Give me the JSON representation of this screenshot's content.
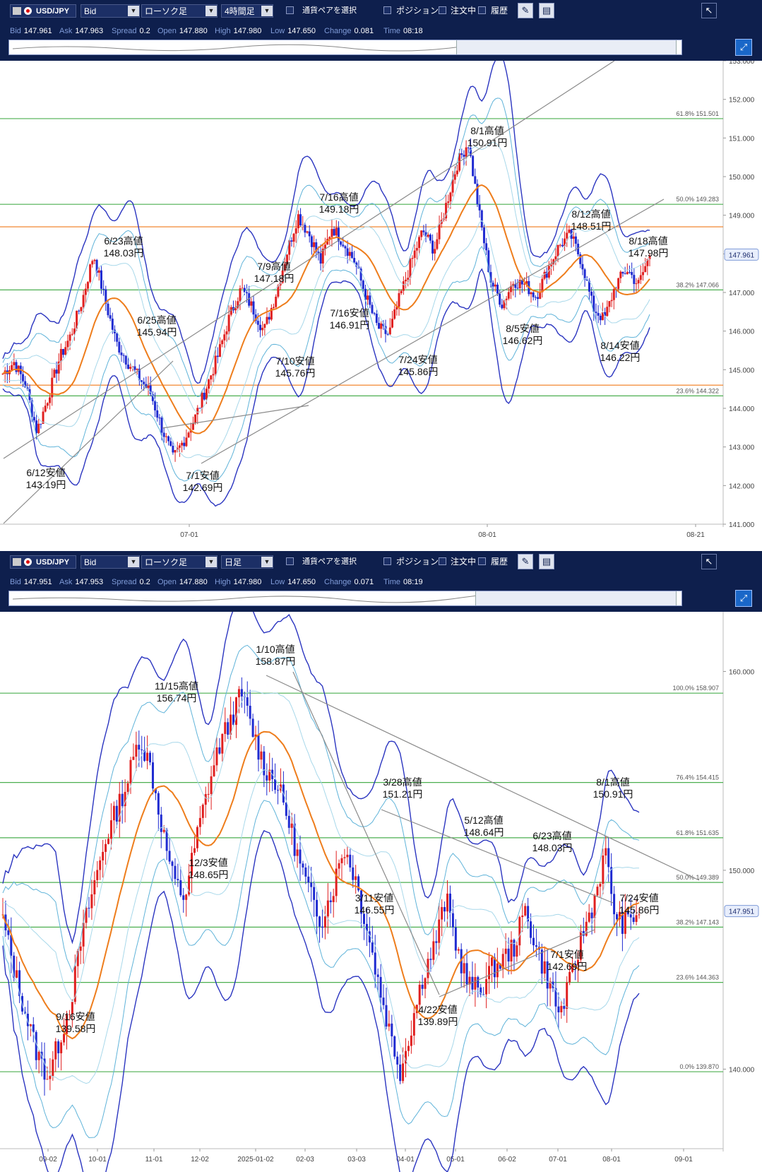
{
  "panels": [
    {
      "symbol": "USD/JPY",
      "price_type": "Bid",
      "chart_type": "ローソク足",
      "timeframe": "4時間足",
      "pair_select_label": "通貨ペアを選択",
      "position_label": "ポジション",
      "orders_label": "注文中",
      "history_label": "履歴",
      "info": {
        "bid_label": "Bid",
        "bid": "147.961",
        "ask_label": "Ask",
        "ask": "147.963",
        "spread_label": "Spread",
        "spread": "0.2",
        "open_label": "Open",
        "open": "147.880",
        "high_label": "High",
        "high": "147.980",
        "low_label": "Low",
        "low": "147.650",
        "change_label": "Change",
        "change": "0.081",
        "time_label": "Time",
        "time": "08:18"
      },
      "last_price_tag": "147.961",
      "y_axis": [
        "153.000",
        "152.000",
        "151.000",
        "150.000",
        "149.000",
        "148.000",
        "147.000",
        "146.000",
        "145.000",
        "144.000",
        "143.000",
        "142.000",
        "141.000"
      ],
      "x_axis": [
        "07-01",
        "08-01",
        "08-21"
      ],
      "fib_labels": [
        "61.8%  151.501",
        "50.0%  149.283",
        "38.2%  147.066",
        "23.6%  144.322"
      ],
      "annotations": [
        {
          "line1": "8/1高値",
          "line2": "150.91円"
        },
        {
          "line1": "7/16高値",
          "line2": "149.18円"
        },
        {
          "line1": "8/12高値",
          "line2": "148.51円"
        },
        {
          "line1": "8/18高値",
          "line2": "147.98円"
        },
        {
          "line1": "6/23高値",
          "line2": "148.03円"
        },
        {
          "line1": "7/9高値",
          "line2": "147.18円"
        },
        {
          "line1": "6/25高値",
          "line2": "145.94円"
        },
        {
          "line1": "7/16安値",
          "line2": "146.91円"
        },
        {
          "line1": "8/5安値",
          "line2": "146.62円"
        },
        {
          "line1": "7/10安値",
          "line2": "145.76円"
        },
        {
          "line1": "7/24安値",
          "line2": "145.86円"
        },
        {
          "line1": "8/14安値",
          "line2": "146.22円"
        },
        {
          "line1": "6/12安値",
          "line2": "143.19円"
        },
        {
          "line1": "7/1安値",
          "line2": "142.69円"
        }
      ]
    },
    {
      "symbol": "USD/JPY",
      "price_type": "Bid",
      "chart_type": "ローソク足",
      "timeframe": "日足",
      "pair_select_label": "通貨ペアを選択",
      "position_label": "ポジション",
      "orders_label": "注文中",
      "history_label": "履歴",
      "info": {
        "bid_label": "Bid",
        "bid": "147.951",
        "ask_label": "Ask",
        "ask": "147.953",
        "spread_label": "Spread",
        "spread": "0.2",
        "open_label": "Open",
        "open": "147.880",
        "high_label": "High",
        "high": "147.980",
        "low_label": "Low",
        "low": "147.650",
        "change_label": "Change",
        "change": "0.071",
        "time_label": "Time",
        "time": "08:19"
      },
      "last_price_tag": "147.951",
      "y_axis": [
        "160.000",
        "150.000",
        "140.000"
      ],
      "x_axis": [
        "09-02",
        "10-01",
        "11-01",
        "12-02",
        "2025-01-02",
        "02-03",
        "03-03",
        "04-01",
        "05-01",
        "06-02",
        "07-01",
        "08-01",
        "09-01"
      ],
      "fib_labels": [
        "100.0%  158.907",
        "76.4%  154.415",
        "61.8%  151.635",
        "50.0%  149.389",
        "38.2%  147.143",
        "23.6%  144.363",
        "0.0%  139.870"
      ],
      "annotations": [
        {
          "line1": "1/10高値",
          "line2": "158.87円"
        },
        {
          "line1": "11/15高値",
          "line2": "156.74円"
        },
        {
          "line1": "3/28高値",
          "line2": "151.21円"
        },
        {
          "line1": "8/1高値",
          "line2": "150.91円"
        },
        {
          "line1": "5/12高値",
          "line2": "148.64円"
        },
        {
          "line1": "6/23高値",
          "line2": "148.03円"
        },
        {
          "line1": "12/3安値",
          "line2": "148.65円"
        },
        {
          "line1": "3/11安値",
          "line2": "146.55円"
        },
        {
          "line1": "7/24安値",
          "line2": "145.86円"
        },
        {
          "line1": "7/1安値",
          "line2": "142.69円"
        },
        {
          "line1": "4/22安値",
          "line2": "139.89円"
        },
        {
          "line1": "9/16安値",
          "line2": "139.58円"
        }
      ]
    }
  ],
  "chart_data": [
    {
      "type": "candlestick",
      "timeframe": "4時間足",
      "ylim": [
        141,
        153
      ],
      "horizontal_levels": [
        {
          "label": "61.8%",
          "value": 151.501,
          "color": "#4caf50"
        },
        {
          "label": "50.0%",
          "value": 149.283,
          "color": "#4caf50"
        },
        {
          "label": "38.2%",
          "value": 147.066,
          "color": "#4caf50"
        },
        {
          "label": "23.6%",
          "value": 144.322,
          "color": "#4caf50"
        },
        {
          "value": 148.7,
          "color": "#f07a1a"
        },
        {
          "value": 144.6,
          "color": "#f07a1a"
        }
      ],
      "close_path": [
        144.9,
        145.2,
        144.6,
        143.4,
        144.3,
        145.3,
        145.9,
        146.8,
        148.0,
        146.8,
        145.7,
        145.2,
        144.8,
        144.4,
        143.5,
        142.7,
        143.2,
        143.8,
        144.6,
        145.4,
        146.4,
        147.1,
        146.6,
        146.0,
        146.9,
        148.0,
        149.0,
        148.5,
        147.8,
        148.7,
        148.3,
        147.8,
        146.9,
        146.1,
        145.9,
        146.9,
        147.8,
        148.6,
        148.1,
        149.2,
        150.3,
        150.9,
        149.0,
        147.3,
        146.7,
        147.3,
        147.2,
        146.9,
        147.6,
        148.2,
        148.5,
        147.8,
        146.6,
        146.3,
        147.2,
        147.6,
        147.2,
        147.98
      ]
    },
    {
      "type": "candlestick",
      "timeframe": "日足",
      "ylim": [
        136,
        163
      ],
      "horizontal_levels": [
        {
          "label": "100.0%",
          "value": 158.907,
          "color": "#4caf50"
        },
        {
          "label": "76.4%",
          "value": 154.415,
          "color": "#4caf50"
        },
        {
          "label": "61.8%",
          "value": 151.635,
          "color": "#4caf50"
        },
        {
          "label": "50.0%",
          "value": 149.389,
          "color": "#4caf50"
        },
        {
          "label": "38.2%",
          "value": 147.143,
          "color": "#4caf50"
        },
        {
          "label": "23.6%",
          "value": 144.363,
          "color": "#4caf50"
        },
        {
          "label": "0.0%",
          "value": 139.87,
          "color": "#4caf50"
        }
      ],
      "close_path": [
        147.5,
        145.0,
        142.8,
        140.8,
        139.6,
        141.5,
        143.5,
        146.8,
        149.2,
        151.5,
        153.0,
        154.5,
        156.7,
        155.2,
        152.2,
        149.5,
        148.6,
        151.5,
        154.0,
        156.2,
        157.5,
        158.87,
        157.0,
        155.2,
        154.5,
        152.8,
        150.6,
        148.8,
        147.5,
        149.0,
        151.2,
        149.7,
        147.2,
        144.5,
        142.0,
        139.89,
        142.3,
        144.8,
        146.2,
        148.6,
        146.0,
        144.2,
        144.0,
        145.0,
        145.5,
        146.2,
        148.0,
        146.0,
        144.5,
        142.69,
        144.5,
        146.8,
        148.4,
        150.91,
        147.4,
        147.4,
        147.95
      ]
    }
  ]
}
